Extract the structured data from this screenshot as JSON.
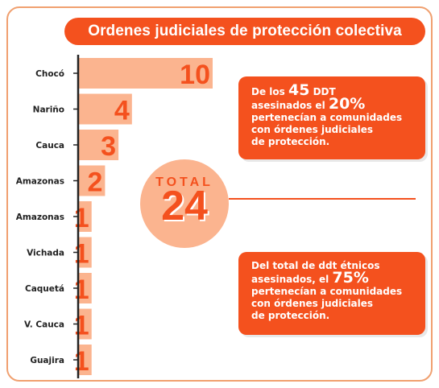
{
  "title": "Ordenes judiciales de protección colectiva",
  "chart_data": {
    "type": "bar",
    "orientation": "horizontal",
    "categories": [
      "Chocó",
      "Nariño",
      "Cauca",
      "Amazonas",
      "Amazonas",
      "Vichada",
      "Caquetá",
      "V. Cauca",
      "Guajira"
    ],
    "values": [
      10,
      4,
      3,
      2,
      1,
      1,
      1,
      1,
      1
    ],
    "title": "Ordenes judiciales de protección colectiva",
    "xlabel": "",
    "ylabel": "",
    "xlim": [
      0,
      10
    ],
    "grid": false
  },
  "total": {
    "label": "TOTAL",
    "value": "24"
  },
  "callout_top": {
    "line1_pre": "De los ",
    "line1_big": "45",
    "line1_post": " DDT",
    "line2_pre": "asesinados el ",
    "line2_big": "20%",
    "line3": "pertenecían a comunidades",
    "line4": "con órdenes judiciales",
    "line5": "de protección."
  },
  "callout_bottom": {
    "line1": "Del total de ddt étnicos",
    "line2_pre": "asesinados, el ",
    "line2_big": "75%",
    "line3": "pertenecían a comunidades",
    "line4": "con órdenes judiciales",
    "line5": "de protección."
  },
  "colors": {
    "accent": "#f4511e",
    "bar": "#fbb48f",
    "axis": "#222222"
  }
}
